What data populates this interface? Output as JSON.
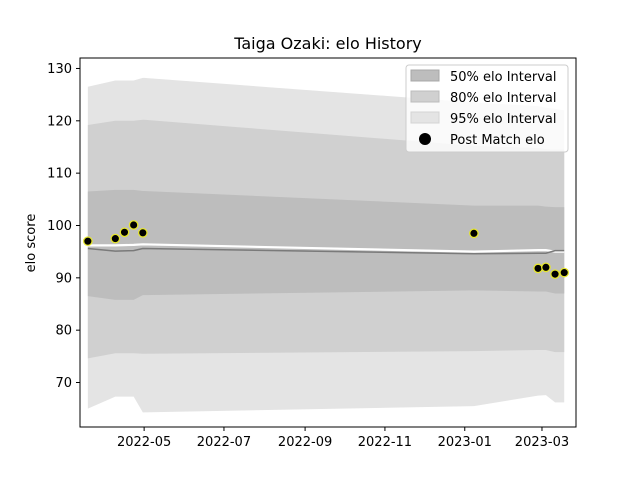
{
  "chart_data": {
    "type": "line",
    "title": "Taiga Ozaki: elo History",
    "xlabel": "",
    "ylabel": "elo score",
    "xlim": [
      "2022-03-13",
      "2023-03-27"
    ],
    "ylim": [
      61.5,
      132.0
    ],
    "x_ticks": [
      "2022-05-01",
      "2022-07-01",
      "2022-09-01",
      "2022-11-01",
      "2023-01-01",
      "2023-03-01"
    ],
    "x_tick_labels": [
      "2022-05",
      "2022-07",
      "2022-09",
      "2022-11",
      "2023-01",
      "2023-03"
    ],
    "y_ticks": [
      70,
      80,
      90,
      100,
      110,
      120,
      130
    ],
    "grid": false,
    "legend": {
      "position": "top-right",
      "entries": [
        "50% elo Interval",
        "80% elo Interval",
        "95% elo Interval",
        "Post Match elo"
      ]
    },
    "bands_x": [
      "2022-03-19",
      "2022-04-09",
      "2022-04-23",
      "2022-04-30",
      "2022-05-01",
      "2023-01-08",
      "2023-02-26",
      "2023-03-04",
      "2023-03-11",
      "2023-03-18"
    ],
    "bands": [
      {
        "name": "95% elo Interval",
        "color": "#e4e4e4",
        "upper": [
          126.5,
          127.7,
          127.7,
          128.2,
          128.2,
          123.5,
          122.8,
          122.5,
          122.3,
          122.0
        ],
        "lower": [
          65.0,
          67.3,
          67.3,
          64.3,
          64.3,
          65.5,
          67.5,
          67.6,
          66.2,
          66.2
        ]
      },
      {
        "name": "80% elo Interval",
        "color": "#d0d0d0",
        "upper": [
          119.2,
          120.0,
          120.0,
          120.2,
          120.2,
          115.2,
          114.8,
          114.6,
          114.5,
          114.5
        ],
        "lower": [
          74.6,
          75.6,
          75.6,
          75.5,
          75.5,
          76.0,
          76.2,
          76.2,
          75.8,
          75.8
        ]
      },
      {
        "name": "50% elo Interval",
        "color": "#bdbdbd",
        "upper": [
          106.5,
          106.8,
          106.8,
          106.6,
          106.6,
          103.8,
          103.8,
          103.6,
          103.5,
          103.5
        ],
        "lower": [
          86.5,
          85.8,
          85.8,
          86.7,
          86.7,
          87.6,
          87.4,
          87.4,
          87.0,
          87.0
        ]
      }
    ],
    "lines": [
      {
        "color": "#ffffff",
        "width": 2.2,
        "x": [
          "2022-03-19",
          "2022-04-09",
          "2022-04-23",
          "2022-04-30",
          "2023-01-08",
          "2023-02-26",
          "2023-03-04",
          "2023-03-11",
          "2023-03-18"
        ],
        "y": [
          96.2,
          96.2,
          96.3,
          96.4,
          95.0,
          95.3,
          95.3,
          95.0,
          95.0
        ]
      },
      {
        "color": "#7a7a7a",
        "width": 1.5,
        "x": [
          "2022-03-19",
          "2022-04-09",
          "2022-04-23",
          "2022-04-30",
          "2023-01-08",
          "2023-02-26",
          "2023-03-04",
          "2023-03-11",
          "2023-03-18"
        ],
        "y": [
          95.6,
          95.1,
          95.2,
          95.6,
          94.6,
          94.7,
          94.7,
          95.2,
          95.2
        ]
      }
    ],
    "series": [
      {
        "name": "Post Match elo",
        "marker_fill": "#000000",
        "marker_edge": "#e6e62e",
        "x": [
          "2022-03-19",
          "2022-04-09",
          "2022-04-16",
          "2022-04-23",
          "2022-04-30",
          "2023-01-08",
          "2023-02-26",
          "2023-03-04",
          "2023-03-11",
          "2023-03-18"
        ],
        "y": [
          97.0,
          97.5,
          98.7,
          100.1,
          98.6,
          98.5,
          91.8,
          92.0,
          90.7,
          91.0
        ]
      }
    ]
  }
}
